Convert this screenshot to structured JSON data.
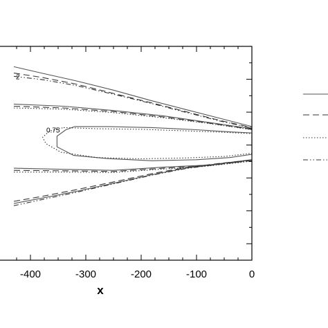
{
  "chart_data": {
    "type": "line",
    "title": "",
    "xlabel": "x",
    "ylabel": "",
    "xlim": [
      -430,
      0
    ],
    "x_ticks": [
      -400,
      -300,
      -200,
      -100,
      0
    ],
    "x_tick_labels": [
      "-400",
      "-300",
      "-200",
      "-100",
      "0"
    ],
    "ylim": [
      0,
      1
    ],
    "grid": false,
    "legend_placement": "right",
    "annotations": [
      {
        "text": "2",
        "x": -430,
        "y": 0.86
      },
      {
        "text": "0.75",
        "x": -375,
        "y": 0.61
      }
    ],
    "series": [
      {
        "style": "solid",
        "color": "#555555",
        "contours": [
          [
            [
              -430,
              0.905
            ],
            [
              -380,
              0.875
            ],
            [
              -320,
              0.84
            ],
            [
              -250,
              0.795
            ],
            [
              -180,
              0.745
            ],
            [
              -120,
              0.705
            ],
            [
              -60,
              0.665
            ],
            [
              0,
              0.625
            ]
          ],
          [
            [
              -430,
              0.73
            ],
            [
              -340,
              0.72
            ],
            [
              -250,
              0.7
            ],
            [
              -160,
              0.675
            ],
            [
              -80,
              0.645
            ],
            [
              0,
              0.615
            ]
          ],
          [
            [
              -320,
              0.625
            ],
            [
              -260,
              0.625
            ],
            [
              -180,
              0.62
            ],
            [
              -100,
              0.61
            ],
            [
              -40,
              0.6
            ],
            [
              0,
              0.595
            ],
            [
              0,
              0.495
            ],
            [
              -40,
              0.48
            ],
            [
              -100,
              0.47
            ],
            [
              -180,
              0.465
            ],
            [
              -260,
              0.475
            ],
            [
              -322,
              0.49
            ],
            [
              -352,
              0.53
            ],
            [
              -352,
              0.58
            ],
            [
              -336,
              0.61
            ],
            [
              -320,
              0.625
            ]
          ],
          [
            [
              -430,
              0.43
            ],
            [
              -340,
              0.425
            ],
            [
              -250,
              0.42
            ],
            [
              -160,
              0.435
            ],
            [
              -80,
              0.445
            ],
            [
              0,
              0.47
            ]
          ],
          [
            [
              -430,
              0.265
            ],
            [
              -380,
              0.29
            ],
            [
              -320,
              0.32
            ],
            [
              -250,
              0.36
            ],
            [
              -180,
              0.4
            ],
            [
              -120,
              0.43
            ],
            [
              -60,
              0.45
            ],
            [
              0,
              0.47
            ]
          ]
        ]
      },
      {
        "style": "dashed",
        "color": "#333333",
        "contours": [
          [
            [
              -430,
              0.875
            ],
            [
              -380,
              0.855
            ],
            [
              -320,
              0.825
            ],
            [
              -250,
              0.78
            ],
            [
              -180,
              0.735
            ],
            [
              -120,
              0.695
            ],
            [
              -60,
              0.655
            ],
            [
              0,
              0.62
            ]
          ],
          [
            [
              -430,
              0.72
            ],
            [
              -340,
              0.712
            ],
            [
              -250,
              0.695
            ],
            [
              -160,
              0.67
            ],
            [
              -80,
              0.642
            ],
            [
              0,
              0.612
            ]
          ],
          [
            [
              -430,
              0.42
            ],
            [
              -340,
              0.418
            ],
            [
              -250,
              0.415
            ],
            [
              -160,
              0.43
            ],
            [
              -80,
              0.442
            ],
            [
              0,
              0.466
            ]
          ],
          [
            [
              -430,
              0.275
            ],
            [
              -380,
              0.298
            ],
            [
              -320,
              0.328
            ],
            [
              -250,
              0.366
            ],
            [
              -180,
              0.405
            ],
            [
              -120,
              0.433
            ],
            [
              -60,
              0.452
            ],
            [
              0,
              0.468
            ]
          ]
        ]
      },
      {
        "style": "dotted",
        "color": "#333333",
        "contours": [
          [
            [
              -430,
              0.712
            ],
            [
              -340,
              0.706
            ],
            [
              -250,
              0.69
            ],
            [
              -160,
              0.666
            ],
            [
              -80,
              0.64
            ],
            [
              0,
              0.61
            ]
          ],
          [
            [
              -340,
              0.62
            ],
            [
              -280,
              0.615
            ],
            [
              -200,
              0.612
            ],
            [
              -120,
              0.605
            ],
            [
              -50,
              0.598
            ],
            [
              0,
              0.592
            ],
            [
              0,
              0.5
            ],
            [
              -50,
              0.485
            ],
            [
              -120,
              0.478
            ],
            [
              -200,
              0.474
            ],
            [
              -280,
              0.48
            ],
            [
              -345,
              0.505
            ],
            [
              -372,
              0.545
            ],
            [
              -378,
              0.575
            ],
            [
              -365,
              0.605
            ],
            [
              -340,
              0.62
            ]
          ],
          [
            [
              -430,
              0.412
            ],
            [
              -340,
              0.412
            ],
            [
              -250,
              0.41
            ],
            [
              -160,
              0.426
            ],
            [
              -80,
              0.44
            ],
            [
              0,
              0.463
            ]
          ]
        ]
      },
      {
        "style": "dashdotdot",
        "color": "#333333",
        "contours": [
          [
            [
              -430,
              0.86
            ],
            [
              -380,
              0.845
            ],
            [
              -320,
              0.818
            ],
            [
              -250,
              0.776
            ],
            [
              -180,
              0.732
            ],
            [
              -120,
              0.692
            ],
            [
              -60,
              0.652
            ],
            [
              0,
              0.618
            ]
          ],
          [
            [
              -430,
              0.255
            ],
            [
              -380,
              0.283
            ],
            [
              -320,
              0.316
            ],
            [
              -250,
              0.357
            ],
            [
              -180,
              0.398
            ],
            [
              -120,
              0.428
            ],
            [
              -60,
              0.449
            ],
            [
              0,
              0.466
            ]
          ]
        ]
      }
    ]
  }
}
